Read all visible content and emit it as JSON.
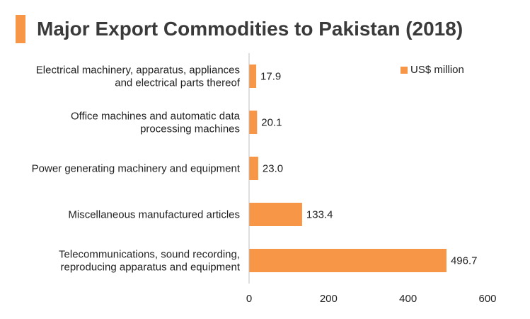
{
  "title": "Major Export Commodities to Pakistan (2018)",
  "colors": {
    "bar": "#F79646",
    "title_accent": "#F79646",
    "axis": "#BFBFBF"
  },
  "chart_data": {
    "type": "bar",
    "orientation": "horizontal",
    "categories": [
      [
        "Electrical machinery, apparatus, appliances",
        "and electrical parts thereof"
      ],
      [
        "Office machines and automatic data",
        "processing machines"
      ],
      [
        "Power generating machinery and equipment"
      ],
      [
        "Miscellaneous manufactured articles"
      ],
      [
        "Telecommunications, sound recording,",
        "reproducing apparatus and equipment"
      ]
    ],
    "series": [
      {
        "name": "US$ million",
        "values": [
          17.9,
          20.1,
          23.0,
          133.4,
          496.7
        ],
        "value_labels": [
          "17.9",
          "20.1",
          "23.0",
          "133.4",
          "496.7"
        ]
      }
    ],
    "xlim": [
      0,
      600
    ],
    "xticks": [
      "0",
      "200",
      "400",
      "600"
    ],
    "legend_position": "top-right",
    "grid": false
  }
}
